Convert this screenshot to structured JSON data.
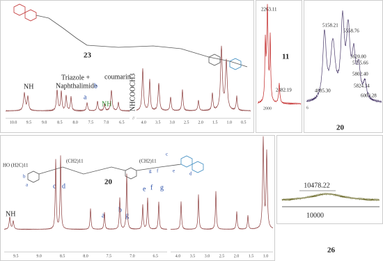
{
  "panel_23": {
    "label": "23",
    "annotations": [
      "NH",
      "Triazole +",
      "Naphthalimide",
      "coumarin",
      "a",
      "b",
      "NH",
      "NHCOOCH3"
    ],
    "axis_left": [
      "10.0",
      "9.5",
      "9.0",
      "8.5",
      "8.0",
      "7.5",
      "7.0",
      "6.5"
    ],
    "axis_right": [
      "4.0",
      "3.5",
      "3.0",
      "2.5",
      "2.0",
      "1.5",
      "1.0",
      "0.5"
    ],
    "break": "//"
  },
  "panel_11": {
    "label": "11",
    "peaks": [
      "2263.11",
      "2482.19"
    ],
    "axis": "2000"
  },
  "panel_20_ms": {
    "label": "20",
    "peaks": [
      "5158.21",
      "5558.76",
      "5620.00",
      "5755.66",
      "5802.40",
      "5824.34",
      "6003.28",
      "4885.30"
    ],
    "axis": "6"
  },
  "panel_20_nmr": {
    "label": "20",
    "formula": "HO (H2C)11",
    "chain1": "(CH2)11",
    "chain2": "(CH2)11",
    "structure_letters": [
      "a",
      "b",
      "c",
      "d",
      "e",
      "f",
      "g"
    ],
    "annotations": [
      "NH",
      "c",
      "d",
      "a",
      "b",
      "g",
      "e",
      "f",
      "g"
    ],
    "axis_left": [
      "9.5",
      "9.0",
      "8.5",
      "8.0",
      "7.5",
      "7.0",
      "6.5"
    ],
    "axis_right": [
      "4.0",
      "3.5",
      "3.0",
      "2.5",
      "2.0",
      "1.5",
      "1.0"
    ]
  },
  "panel_26": {
    "label": "26",
    "peak": "10478.22",
    "axis": "10000"
  }
}
